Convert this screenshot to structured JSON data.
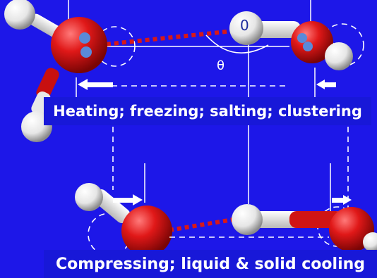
{
  "labels": {
    "top_banner": "Heating; freezing; salting; clustering",
    "bottom_banner": "Compressing; liquid & solid cooling",
    "angle_symbol": "θ",
    "h_label": "0"
  },
  "colors": {
    "background": "#1d17e8",
    "banner": "#1818d8",
    "oxygen": "#e01818",
    "hydrogen": "#f4f4f4",
    "lone_pair": "#5a8ad8",
    "hbond": "#d81818",
    "lines": "#ffffff"
  },
  "icons": [
    "left-arrow-icon",
    "right-arrow-icon"
  ]
}
